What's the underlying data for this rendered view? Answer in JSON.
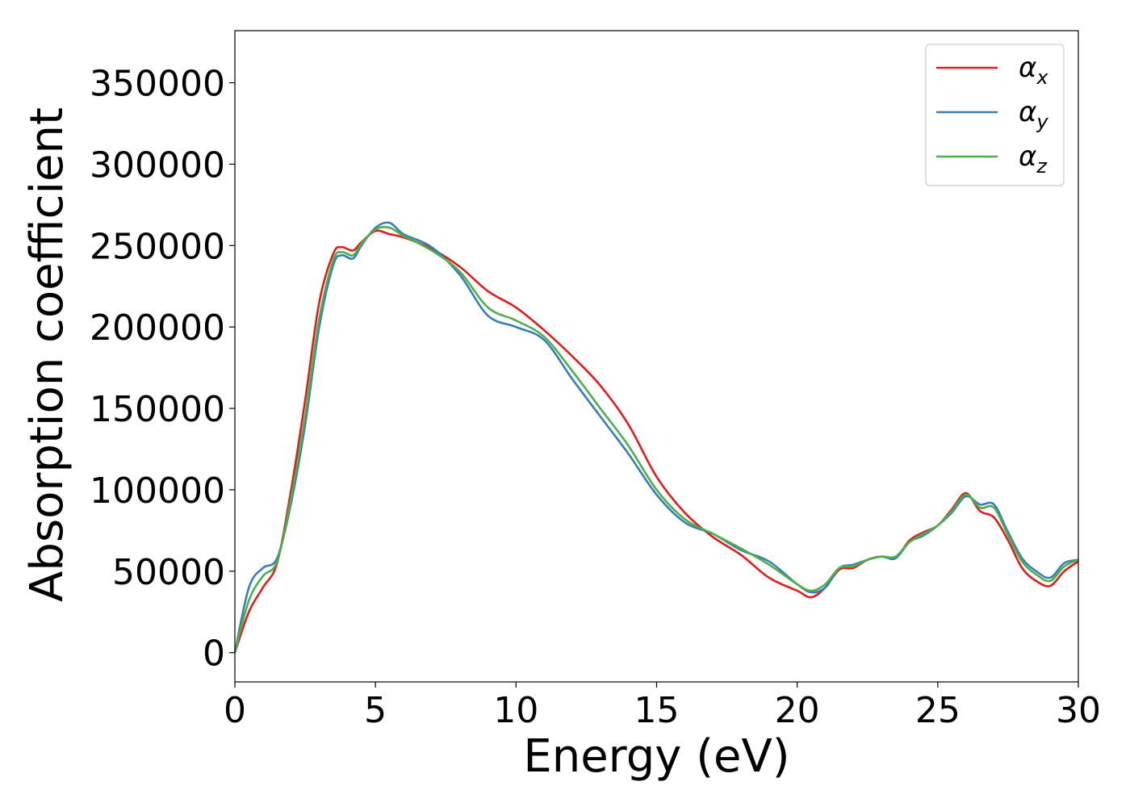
{
  "chart_data": {
    "type": "line",
    "title": "",
    "xlabel": "Energy (eV)",
    "ylabel": "Absorption coefficient",
    "xlim": [
      0,
      30
    ],
    "ylim": [
      -18000,
      382000
    ],
    "xticks": [
      0,
      5,
      10,
      15,
      20,
      25,
      30
    ],
    "yticks": [
      0,
      50000,
      100000,
      150000,
      200000,
      250000,
      300000,
      350000
    ],
    "grid": false,
    "legend_position": "top-right",
    "series": [
      {
        "name": "αx",
        "legend_base": "α",
        "legend_sub": "x",
        "color": "#e41a1c",
        "x": [
          0,
          0.5,
          1.0,
          1.5,
          2.0,
          2.5,
          3.0,
          3.5,
          3.8,
          4.2,
          4.5,
          5.0,
          5.5,
          6.0,
          7.0,
          8.0,
          9.0,
          10.0,
          11.0,
          12.0,
          13.0,
          14.0,
          15.0,
          16.0,
          17.0,
          18.0,
          19.0,
          20.0,
          20.5,
          21.0,
          21.5,
          22.0,
          22.5,
          23.0,
          23.5,
          24.0,
          24.5,
          25.0,
          25.5,
          26.0,
          26.5,
          27.0,
          27.5,
          28.0,
          28.5,
          29.0,
          29.5,
          30.0
        ],
        "y": [
          0,
          25000,
          40000,
          55000,
          100000,
          155000,
          215000,
          245000,
          249000,
          247000,
          252000,
          259000,
          257000,
          255000,
          248000,
          237000,
          222000,
          212000,
          198000,
          182000,
          164000,
          140000,
          108000,
          86000,
          71000,
          60000,
          46000,
          38000,
          34000,
          40000,
          51000,
          52000,
          57000,
          59000,
          58000,
          69000,
          74000,
          78000,
          88000,
          98000,
          87000,
          83000,
          69000,
          52000,
          44000,
          41000,
          50000,
          56000
        ]
      },
      {
        "name": "αy",
        "legend_base": "α",
        "legend_sub": "y",
        "color": "#377eb8",
        "x": [
          0,
          0.5,
          1.0,
          1.5,
          2.0,
          2.5,
          3.0,
          3.5,
          3.8,
          4.2,
          4.5,
          5.0,
          5.5,
          6.0,
          7.0,
          8.0,
          9.0,
          10.0,
          11.0,
          12.0,
          13.0,
          14.0,
          15.0,
          16.0,
          17.0,
          18.0,
          19.0,
          20.0,
          20.5,
          21.0,
          21.5,
          22.0,
          22.5,
          23.0,
          23.5,
          24.0,
          24.5,
          25.0,
          25.5,
          26.0,
          26.5,
          27.0,
          27.5,
          28.0,
          28.5,
          29.0,
          29.5,
          30.0
        ],
        "y": [
          0,
          40000,
          52000,
          58000,
          92000,
          140000,
          200000,
          238000,
          244000,
          242000,
          250000,
          261000,
          264000,
          257000,
          249000,
          232000,
          207000,
          200000,
          192000,
          168000,
          145000,
          122000,
          97000,
          80000,
          73000,
          63000,
          56000,
          42000,
          37000,
          40000,
          52000,
          54000,
          57000,
          59000,
          58000,
          68000,
          72000,
          78000,
          86000,
          96000,
          91000,
          91000,
          74000,
          58000,
          50000,
          46000,
          55000,
          57000
        ]
      },
      {
        "name": "αz",
        "legend_base": "α",
        "legend_sub": "z",
        "color": "#4daf4a",
        "x": [
          0,
          0.5,
          1.0,
          1.5,
          2.0,
          2.5,
          3.0,
          3.5,
          3.8,
          4.2,
          4.5,
          5.0,
          5.5,
          6.0,
          7.0,
          8.0,
          9.0,
          10.0,
          11.0,
          12.0,
          13.0,
          14.0,
          15.0,
          16.0,
          17.0,
          18.0,
          19.0,
          20.0,
          20.5,
          21.0,
          21.5,
          22.0,
          22.5,
          23.0,
          23.5,
          24.0,
          24.5,
          25.0,
          25.5,
          26.0,
          26.5,
          27.0,
          27.5,
          28.0,
          28.5,
          29.0,
          29.5,
          30.0
        ],
        "y": [
          0,
          32000,
          47000,
          56000,
          95000,
          145000,
          205000,
          241000,
          246000,
          244000,
          251000,
          260000,
          261000,
          256000,
          247000,
          234000,
          212000,
          204000,
          194000,
          173000,
          150000,
          127000,
          100000,
          82000,
          73000,
          64000,
          54000,
          42000,
          38000,
          42000,
          52000,
          53000,
          57000,
          59000,
          59000,
          68000,
          73000,
          78000,
          87000,
          97000,
          89000,
          89000,
          72000,
          56000,
          48000,
          44000,
          53000,
          57000
        ]
      }
    ]
  }
}
